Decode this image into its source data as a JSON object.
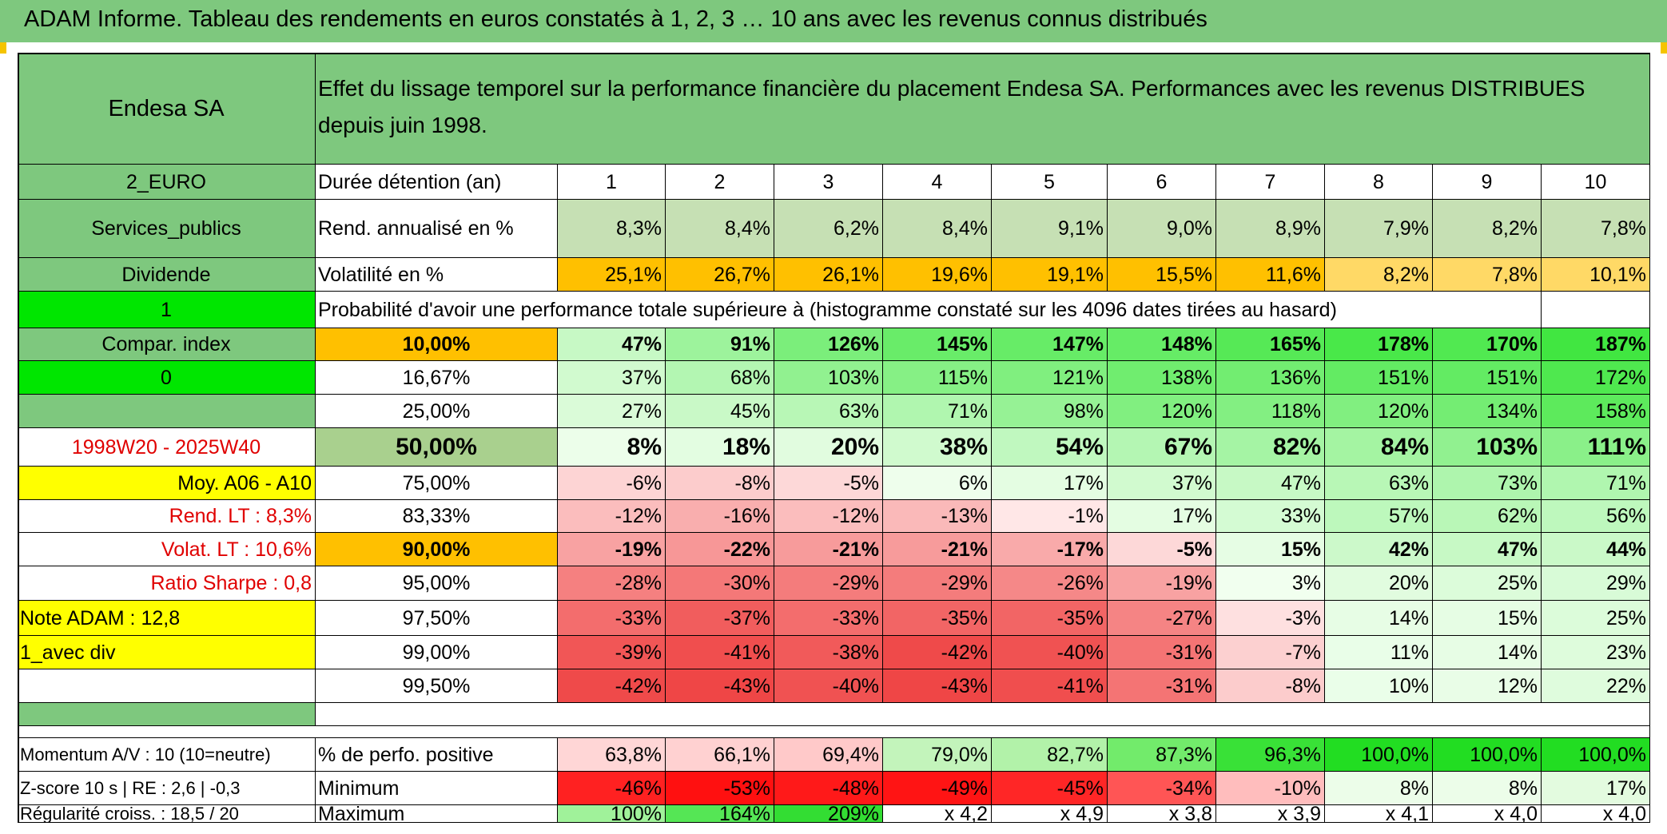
{
  "title": "ADAM Informe. Tableau des rendements en euros constatés à 1, 2, 3 … 10 ans avec les revenus connus distribués",
  "colors": {
    "header_green": "#7ec87e",
    "bright_green": "#00e600",
    "orange": "#ffc000",
    "yellow": "#ffff00",
    "red_text": "#e00000",
    "light_green_row": "#c6e0b4"
  },
  "left_panel": {
    "name": "Endesa SA",
    "currency": "2_EURO",
    "sector": "Services_publics",
    "dividend_label": "Dividende",
    "flag1": "1",
    "compar_index": "Compar. index",
    "flag0": "0",
    "period": "1998W20 - 2025W40",
    "moy": "Moy. A06 - A10",
    "rend_lt": "Rend. LT :   8,3%",
    "volat_lt": "Volat. LT :   10,6%",
    "sharpe": "Ratio Sharpe :   0,8",
    "note": "Note ADAM : 12,8",
    "avec_div": "1_avec div"
  },
  "header_text": "Effet du lissage temporel sur la performance financière du placement Endesa SA. Performances avec les revenus DISTRIBUES depuis juin 1998.",
  "duree_label": "Durée détention (an)",
  "years": [
    "1",
    "2",
    "3",
    "4",
    "5",
    "6",
    "7",
    "8",
    "9",
    "10"
  ],
  "rend_label": "Rend. annualisé en %",
  "rend_values": [
    "8,3%",
    "8,4%",
    "6,2%",
    "8,4%",
    "9,1%",
    "9,0%",
    "8,9%",
    "7,9%",
    "8,2%",
    "7,8%"
  ],
  "vol_label": "Volatilité en %",
  "vol_values": [
    "25,1%",
    "26,7%",
    "26,1%",
    "19,6%",
    "19,1%",
    "15,5%",
    "11,6%",
    "8,2%",
    "7,8%",
    "10,1%"
  ],
  "prob_label": "Probabilité d'avoir une performance totale supérieure à (histogramme constaté sur les 4096 dates tirées au hasard)",
  "quantiles": [
    {
      "p": "10,00%",
      "v": [
        "47%",
        "91%",
        "126%",
        "145%",
        "147%",
        "148%",
        "165%",
        "178%",
        "170%",
        "187%"
      ],
      "bold": true
    },
    {
      "p": "16,67%",
      "v": [
        "37%",
        "68%",
        "103%",
        "115%",
        "121%",
        "138%",
        "136%",
        "151%",
        "151%",
        "172%"
      ],
      "bold": false
    },
    {
      "p": "25,00%",
      "v": [
        "27%",
        "45%",
        "63%",
        "71%",
        "98%",
        "120%",
        "118%",
        "120%",
        "134%",
        "158%"
      ],
      "bold": false
    },
    {
      "p": "50,00%",
      "v": [
        "8%",
        "18%",
        "20%",
        "38%",
        "54%",
        "67%",
        "82%",
        "84%",
        "103%",
        "111%"
      ],
      "bold": true
    },
    {
      "p": "75,00%",
      "v": [
        "-6%",
        "-8%",
        "-5%",
        "6%",
        "17%",
        "37%",
        "47%",
        "63%",
        "73%",
        "71%"
      ],
      "bold": false
    },
    {
      "p": "83,33%",
      "v": [
        "-12%",
        "-16%",
        "-12%",
        "-13%",
        "-1%",
        "17%",
        "33%",
        "57%",
        "62%",
        "56%"
      ],
      "bold": false
    },
    {
      "p": "90,00%",
      "v": [
        "-19%",
        "-22%",
        "-21%",
        "-21%",
        "-17%",
        "-5%",
        "15%",
        "42%",
        "47%",
        "44%"
      ],
      "bold": true
    },
    {
      "p": "95,00%",
      "v": [
        "-28%",
        "-30%",
        "-29%",
        "-29%",
        "-26%",
        "-19%",
        "3%",
        "20%",
        "25%",
        "29%"
      ],
      "bold": false
    },
    {
      "p": "97,50%",
      "v": [
        "-33%",
        "-37%",
        "-33%",
        "-35%",
        "-35%",
        "-27%",
        "-3%",
        "14%",
        "15%",
        "25%"
      ],
      "bold": false
    },
    {
      "p": "99,00%",
      "v": [
        "-39%",
        "-41%",
        "-38%",
        "-42%",
        "-40%",
        "-31%",
        "-7%",
        "11%",
        "14%",
        "23%"
      ],
      "bold": false
    },
    {
      "p": "99,50%",
      "v": [
        "-42%",
        "-43%",
        "-40%",
        "-43%",
        "-41%",
        "-31%",
        "-8%",
        "10%",
        "12%",
        "22%"
      ],
      "bold": false
    }
  ],
  "bottom": {
    "momentum": "Momentum A/V : 10 (10=neutre)",
    "zscore": "Z-score 10 s | RE : 2,6 | -0,3",
    "regularite": "Régularité croiss. : 18,5 / 20",
    "pos_label": "% de perfo. positive",
    "pos_values": [
      "63,8%",
      "66,1%",
      "69,4%",
      "79,0%",
      "82,7%",
      "87,3%",
      "96,3%",
      "100,0%",
      "100,0%",
      "100,0%"
    ],
    "min_label": "Minimum",
    "min_values": [
      "-46%",
      "-53%",
      "-48%",
      "-49%",
      "-45%",
      "-34%",
      "-10%",
      "8%",
      "8%",
      "17%"
    ],
    "max_label": "Maximum",
    "max_values": [
      "100%",
      "164%",
      "209%",
      "x 4,2",
      "x 4,9",
      "x 3,8",
      "x 3,9",
      "x 4,1",
      "x 4,0",
      "x 4,0"
    ]
  }
}
